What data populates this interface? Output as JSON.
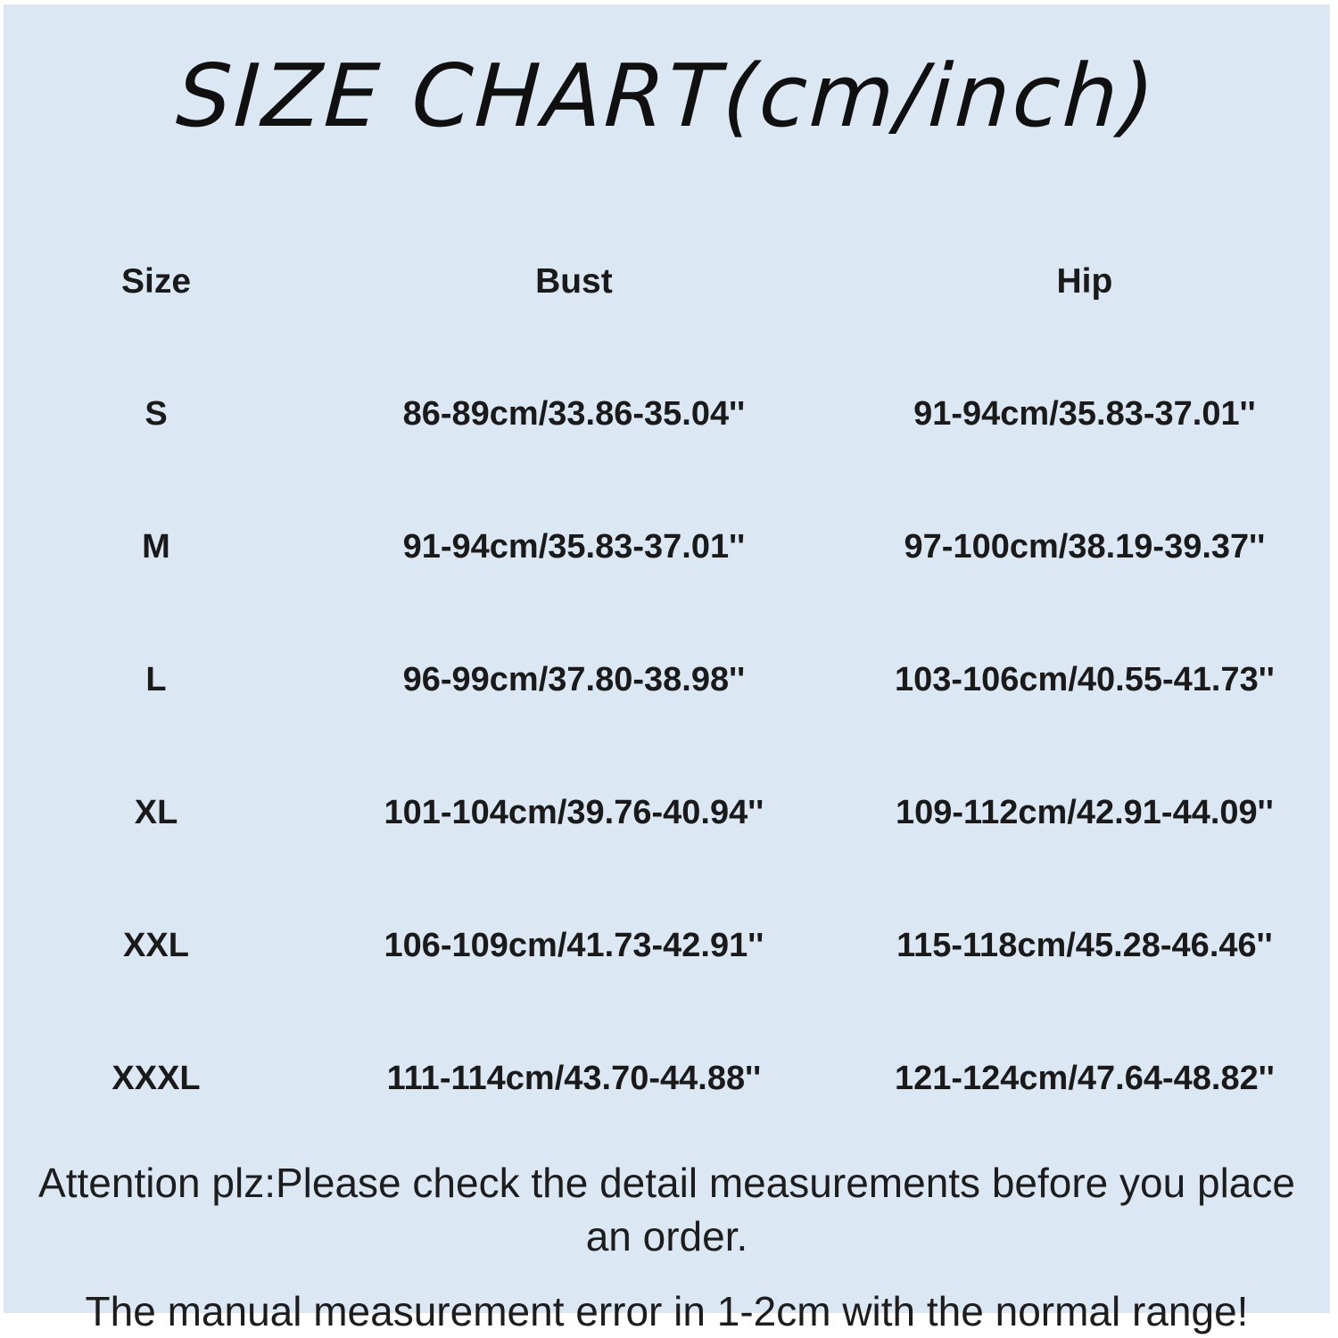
{
  "page": {
    "title": "SIZE CHART(cm/inch)",
    "background_color": "#dbe7f3",
    "text_color": "#1a1a1a"
  },
  "table": {
    "headers": [
      "Size",
      "Bust",
      "Hip"
    ],
    "rows": [
      {
        "size": "S",
        "bust": "86-89cm/33.86-35.04''",
        "hip": "91-94cm/35.83-37.01''"
      },
      {
        "size": "M",
        "bust": "91-94cm/35.83-37.01''",
        "hip": "97-100cm/38.19-39.37''"
      },
      {
        "size": "L",
        "bust": "96-99cm/37.80-38.98''",
        "hip": "103-106cm/40.55-41.73''"
      },
      {
        "size": "XL",
        "bust": "101-104cm/39.76-40.94''",
        "hip": "109-112cm/42.91-44.09''"
      },
      {
        "size": "XXL",
        "bust": "106-109cm/41.73-42.91''",
        "hip": "115-118cm/45.28-46.46''"
      },
      {
        "size": "XXXL",
        "bust": "111-114cm/43.70-44.88''",
        "hip": "121-124cm/47.64-48.82''"
      }
    ]
  },
  "footer": {
    "line1": "Attention plz:Please check the detail measurements before you place an order.",
    "line2": "The manual measurement error in 1-2cm with the normal range!"
  }
}
